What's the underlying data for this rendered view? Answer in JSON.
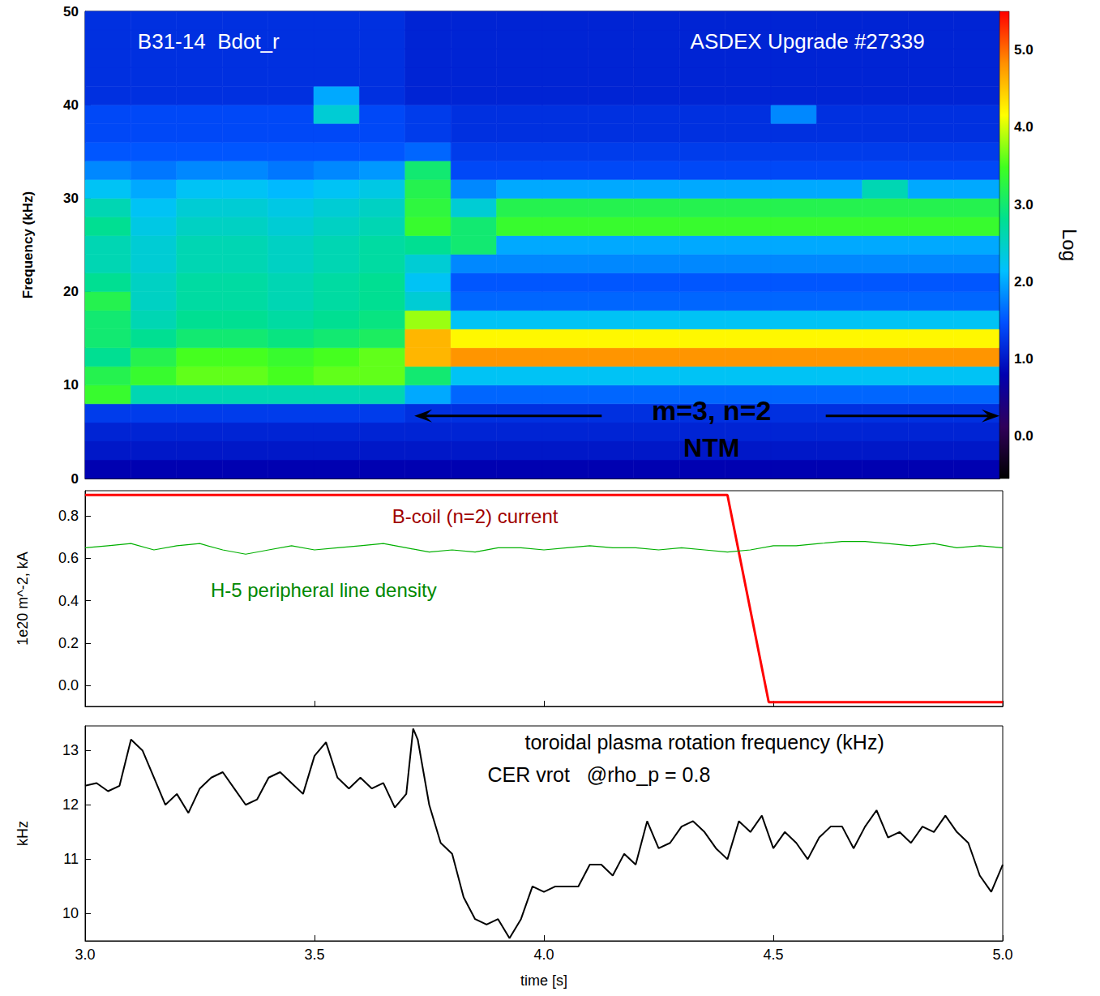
{
  "chart_data": [
    {
      "type": "heatmap",
      "ylabel": "Frequency (kHz)",
      "xlim": [
        3.0,
        5.0
      ],
      "ylim": [
        0,
        50
      ],
      "xticks": [
        3,
        3.5,
        4,
        4.5,
        5
      ],
      "yticks": [
        0,
        10,
        20,
        30,
        40,
        50
      ],
      "tick_labels": "y",
      "time_edges": [
        3.0,
        3.1,
        3.2,
        3.3,
        3.4,
        3.5,
        3.6,
        3.7,
        3.8,
        3.9,
        4.0,
        4.1,
        4.2,
        4.3,
        4.4,
        4.5,
        4.6,
        4.7,
        4.8,
        4.9,
        5.0
      ],
      "freq_edges": [
        0,
        2,
        4,
        6,
        8,
        10,
        12,
        14,
        16,
        18,
        20,
        22,
        24,
        26,
        28,
        30,
        32,
        34,
        36,
        38,
        40,
        42,
        44,
        46,
        48,
        50
      ],
      "cells": [
        [
          0.8,
          0.8,
          0.8,
          0.8,
          0.8,
          0.8,
          0.8,
          0.8,
          0.8,
          0.8,
          0.8,
          0.8,
          0.8,
          0.8,
          0.8,
          0.8,
          0.8,
          0.8,
          0.8,
          0.8
        ],
        [
          1.0,
          1.0,
          1.0,
          1.0,
          1.0,
          1.0,
          1.0,
          1.0,
          1.0,
          1.0,
          1.0,
          1.0,
          1.0,
          1.0,
          1.0,
          1.0,
          1.0,
          1.0,
          1.0,
          1.0
        ],
        [
          1.1,
          1.1,
          1.1,
          1.1,
          1.1,
          1.1,
          1.1,
          1.1,
          1.1,
          1.1,
          1.1,
          1.1,
          1.1,
          1.1,
          1.1,
          1.1,
          1.1,
          1.1,
          1.1,
          1.1
        ],
        [
          1.3,
          1.3,
          1.3,
          1.3,
          1.3,
          1.3,
          1.3,
          1.2,
          1.2,
          1.2,
          1.2,
          1.2,
          1.2,
          1.2,
          1.2,
          1.2,
          1.2,
          1.2,
          1.2,
          1.2
        ],
        [
          3.4,
          2.6,
          2.6,
          2.6,
          2.6,
          2.6,
          2.6,
          2.0,
          1.6,
          1.6,
          1.6,
          1.6,
          1.6,
          1.6,
          1.6,
          1.6,
          1.6,
          1.6,
          1.6,
          1.6
        ],
        [
          3.2,
          3.4,
          3.6,
          3.6,
          3.5,
          3.6,
          3.6,
          3.0,
          2.2,
          2.2,
          2.2,
          2.2,
          2.2,
          2.2,
          2.2,
          2.2,
          2.2,
          2.2,
          2.2,
          2.2
        ],
        [
          2.8,
          3.2,
          3.5,
          3.5,
          3.4,
          3.5,
          3.6,
          4.6,
          4.8,
          4.8,
          4.8,
          4.8,
          4.8,
          4.8,
          4.8,
          4.8,
          4.8,
          4.8,
          4.8,
          4.8
        ],
        [
          3.0,
          2.8,
          3.0,
          3.0,
          2.9,
          3.0,
          3.1,
          4.6,
          4.2,
          4.2,
          4.2,
          4.2,
          4.2,
          4.2,
          4.2,
          4.2,
          4.2,
          4.2,
          4.2,
          4.2
        ],
        [
          3.0,
          2.6,
          2.8,
          2.8,
          2.7,
          2.8,
          2.9,
          3.8,
          2.2,
          2.2,
          2.2,
          2.2,
          2.2,
          2.2,
          2.2,
          2.2,
          2.2,
          2.2,
          2.2,
          2.2
        ],
        [
          3.2,
          2.5,
          2.7,
          2.7,
          2.6,
          2.7,
          2.8,
          2.4,
          1.6,
          1.6,
          1.6,
          1.6,
          1.6,
          1.6,
          1.6,
          1.6,
          1.6,
          1.6,
          1.6,
          1.6
        ],
        [
          2.8,
          2.5,
          2.7,
          2.7,
          2.6,
          2.7,
          2.8,
          2.2,
          1.5,
          1.5,
          1.5,
          1.5,
          1.5,
          1.5,
          1.5,
          1.5,
          1.5,
          1.5,
          1.5,
          1.5
        ],
        [
          2.6,
          2.4,
          2.6,
          2.6,
          2.5,
          2.6,
          2.7,
          2.4,
          1.8,
          1.8,
          1.8,
          1.8,
          1.8,
          1.8,
          1.8,
          1.8,
          1.8,
          1.8,
          1.8,
          1.8
        ],
        [
          2.6,
          2.4,
          2.6,
          2.6,
          2.5,
          2.6,
          2.7,
          2.8,
          3.0,
          2.0,
          2.0,
          2.0,
          2.0,
          2.0,
          2.0,
          2.0,
          2.0,
          2.0,
          2.0,
          2.0
        ],
        [
          2.8,
          2.3,
          2.5,
          2.5,
          2.4,
          2.5,
          2.6,
          3.4,
          3.0,
          3.4,
          3.4,
          3.4,
          3.4,
          3.4,
          3.4,
          3.4,
          3.4,
          3.4,
          3.4,
          3.4
        ],
        [
          2.6,
          2.2,
          2.4,
          2.4,
          2.3,
          2.4,
          2.5,
          3.3,
          2.4,
          3.2,
          3.2,
          3.2,
          3.2,
          3.2,
          3.2,
          3.2,
          3.2,
          3.2,
          3.2,
          3.2
        ],
        [
          2.2,
          2.0,
          2.2,
          2.2,
          2.1,
          2.2,
          2.3,
          3.2,
          1.8,
          2.0,
          2.0,
          2.0,
          2.0,
          2.0,
          2.0,
          2.0,
          2.0,
          2.6,
          2.0,
          2.0
        ],
        [
          1.8,
          1.7,
          1.8,
          1.8,
          1.7,
          1.8,
          1.9,
          3.0,
          1.4,
          1.4,
          1.4,
          1.4,
          1.4,
          1.4,
          1.4,
          1.4,
          1.4,
          1.4,
          1.4,
          1.4
        ],
        [
          1.5,
          1.5,
          1.5,
          1.5,
          1.5,
          1.5,
          1.5,
          1.6,
          1.3,
          1.3,
          1.3,
          1.3,
          1.3,
          1.3,
          1.3,
          1.3,
          1.3,
          1.3,
          1.3,
          1.3
        ],
        [
          1.4,
          1.4,
          1.4,
          1.4,
          1.4,
          1.4,
          1.4,
          1.3,
          1.2,
          1.2,
          1.2,
          1.2,
          1.2,
          1.2,
          1.2,
          1.2,
          1.2,
          1.2,
          1.2,
          1.2
        ],
        [
          1.4,
          1.4,
          1.4,
          1.4,
          1.4,
          2.4,
          1.4,
          1.3,
          1.2,
          1.2,
          1.2,
          1.2,
          1.2,
          1.2,
          1.2,
          1.8,
          1.2,
          1.2,
          1.2,
          1.2
        ],
        [
          1.2,
          1.2,
          1.2,
          1.2,
          1.2,
          2.0,
          1.2,
          1.1,
          1.1,
          1.1,
          1.1,
          1.1,
          1.1,
          1.1,
          1.1,
          1.1,
          1.1,
          1.1,
          1.1,
          1.1
        ],
        [
          1.2,
          1.2,
          1.2,
          1.2,
          1.2,
          1.2,
          1.2,
          1.1,
          1.1,
          1.1,
          1.1,
          1.1,
          1.1,
          1.1,
          1.1,
          1.1,
          1.1,
          1.1,
          1.1,
          1.1
        ],
        [
          1.2,
          1.2,
          1.2,
          1.2,
          1.2,
          1.2,
          1.2,
          1.1,
          1.1,
          1.1,
          1.1,
          1.1,
          1.1,
          1.1,
          1.1,
          1.1,
          1.1,
          1.1,
          1.1,
          1.1
        ],
        [
          1.2,
          1.2,
          1.2,
          1.2,
          1.2,
          1.2,
          1.2,
          1.1,
          1.1,
          1.1,
          1.1,
          1.1,
          1.1,
          1.1,
          1.1,
          1.1,
          1.1,
          1.1,
          1.1,
          1.1
        ],
        [
          1.2,
          1.2,
          1.2,
          1.2,
          1.2,
          1.2,
          1.2,
          1.1,
          1.1,
          1.1,
          1.1,
          1.1,
          1.1,
          1.1,
          1.1,
          1.1,
          1.1,
          1.1,
          1.1,
          1.1
        ]
      ],
      "colorbar": {
        "label": "Log",
        "range": [
          -0.55,
          5.5
        ],
        "ticks": [
          {
            "value": 0,
            "label": "0.0"
          },
          {
            "value": 1,
            "label": "1.0"
          },
          {
            "value": 2,
            "label": "2.0"
          },
          {
            "value": 3,
            "label": "3.0"
          },
          {
            "value": 4,
            "label": "4.0"
          },
          {
            "value": 5,
            "label": "5.0"
          }
        ]
      },
      "annotations": [
        {
          "text": "B31-14  Bdot_r",
          "x": 3.27,
          "y": 46.8,
          "color": "#ffffff"
        },
        {
          "text": "ASDEX Upgrade #27339",
          "x": 4.58,
          "y": 46.8,
          "color": "#ffffff"
        },
        {
          "text": "m=3, n=2",
          "x": 4.37,
          "y": 7.3,
          "color": "#000000"
        },
        {
          "text": "NTM",
          "x": 4.37,
          "y": 3.3,
          "color": "#000000"
        }
      ],
      "arrows": [
        {
          "from": 4.13,
          "to": 3.72,
          "y": 6.7
        },
        {
          "from": 4.62,
          "to": 5.0,
          "y": 6.7
        }
      ]
    },
    {
      "type": "line",
      "ylabel": "1e20 m^-2, kA",
      "xlim": [
        3.0,
        5.0
      ],
      "ylim": [
        -0.1,
        0.92
      ],
      "xticks": [
        3,
        3.5,
        4,
        4.5,
        5
      ],
      "yticks": [
        {
          "value": 0,
          "label": "0.0"
        },
        0.2,
        0.4,
        0.6,
        0.8
      ],
      "tick_labels": "y",
      "series": [
        {
          "color": "#ff0000",
          "x": [
            3.0,
            4.4,
            4.49,
            5.0
          ],
          "values": [
            0.9,
            0.9,
            -0.08,
            -0.08
          ]
        },
        {
          "color": "#00b000",
          "x": [
            3.0,
            3.05,
            3.1,
            3.15,
            3.2,
            3.25,
            3.3,
            3.35,
            3.4,
            3.45,
            3.5,
            3.55,
            3.6,
            3.65,
            3.7,
            3.75,
            3.8,
            3.85,
            3.9,
            3.95,
            4.0,
            4.05,
            4.1,
            4.15,
            4.2,
            4.25,
            4.3,
            4.35,
            4.4,
            4.45,
            4.5,
            4.55,
            4.6,
            4.65,
            4.7,
            4.75,
            4.8,
            4.85,
            4.9,
            4.95,
            5.0
          ],
          "values": [
            0.65,
            0.66,
            0.67,
            0.64,
            0.66,
            0.67,
            0.64,
            0.62,
            0.64,
            0.66,
            0.64,
            0.65,
            0.66,
            0.67,
            0.65,
            0.63,
            0.64,
            0.63,
            0.65,
            0.65,
            0.64,
            0.65,
            0.66,
            0.65,
            0.65,
            0.64,
            0.65,
            0.64,
            0.63,
            0.64,
            0.66,
            0.66,
            0.67,
            0.68,
            0.68,
            0.67,
            0.66,
            0.67,
            0.65,
            0.66,
            0.65
          ]
        }
      ],
      "annotations": [
        {
          "text": "B-coil (n=2) current",
          "x": 3.85,
          "y": 0.8,
          "color": "#a00000"
        },
        {
          "text": "H-5 peripheral line density",
          "x": 3.52,
          "y": 0.45,
          "color": "#008800"
        }
      ]
    },
    {
      "type": "line",
      "xlabel": "time [s]",
      "ylabel": "kHz",
      "xlim": [
        3.0,
        5.0
      ],
      "ylim": [
        9.5,
        13.45
      ],
      "xticks": [
        {
          "value": 3,
          "label": "3.0"
        },
        3.5,
        {
          "value": 4,
          "label": "4.0"
        },
        4.5,
        {
          "value": 5,
          "label": "5.0"
        }
      ],
      "yticks": [
        10,
        11,
        12,
        13
      ],
      "series": [
        {
          "color": "#000000",
          "x": [
            3,
            3.025,
            3.05,
            3.075,
            3.1,
            3.125,
            3.15,
            3.175,
            3.2,
            3.225,
            3.25,
            3.275,
            3.3,
            3.325,
            3.35,
            3.375,
            3.4,
            3.425,
            3.45,
            3.475,
            3.5,
            3.525,
            3.55,
            3.575,
            3.6,
            3.625,
            3.65,
            3.675,
            3.7,
            3.715,
            3.725,
            3.75,
            3.775,
            3.8,
            3.825,
            3.85,
            3.875,
            3.9,
            3.925,
            3.95,
            3.975,
            4,
            4.025,
            4.05,
            4.075,
            4.1,
            4.125,
            4.15,
            4.175,
            4.2,
            4.225,
            4.25,
            4.275,
            4.3,
            4.325,
            4.35,
            4.375,
            4.4,
            4.425,
            4.45,
            4.475,
            4.5,
            4.525,
            4.55,
            4.575,
            4.6,
            4.625,
            4.65,
            4.675,
            4.7,
            4.725,
            4.75,
            4.775,
            4.8,
            4.825,
            4.85,
            4.875,
            4.9,
            4.925,
            4.95,
            4.975,
            5
          ],
          "values": [
            12.35,
            12.4,
            12.25,
            12.35,
            13.2,
            13.0,
            12.5,
            12.0,
            12.2,
            11.85,
            12.3,
            12.5,
            12.6,
            12.3,
            12.0,
            12.1,
            12.5,
            12.6,
            12.4,
            12.2,
            12.9,
            13.15,
            12.5,
            12.3,
            12.5,
            12.3,
            12.4,
            11.95,
            12.2,
            13.4,
            13.2,
            12.0,
            11.3,
            11.1,
            10.3,
            9.9,
            9.8,
            9.9,
            9.55,
            9.9,
            10.5,
            10.4,
            10.5,
            10.5,
            10.5,
            10.9,
            10.9,
            10.7,
            11.1,
            10.9,
            11.7,
            11.2,
            11.3,
            11.6,
            11.7,
            11.5,
            11.2,
            11.0,
            11.7,
            11.5,
            11.8,
            11.2,
            11.5,
            11.3,
            11.0,
            11.4,
            11.6,
            11.6,
            11.2,
            11.6,
            11.9,
            11.4,
            11.5,
            11.3,
            11.6,
            11.5,
            11.8,
            11.5,
            11.3,
            10.7,
            10.4,
            10.9
          ]
        }
      ],
      "annotations": [
        {
          "text": "toroidal plasma rotation frequency (kHz)",
          "x": 4.35,
          "y": 13.15,
          "color": "#000000"
        },
        {
          "text": "CER vrot   @rho_p = 0.8",
          "x": 4.12,
          "y": 12.55,
          "color": "#000000"
        }
      ]
    }
  ]
}
